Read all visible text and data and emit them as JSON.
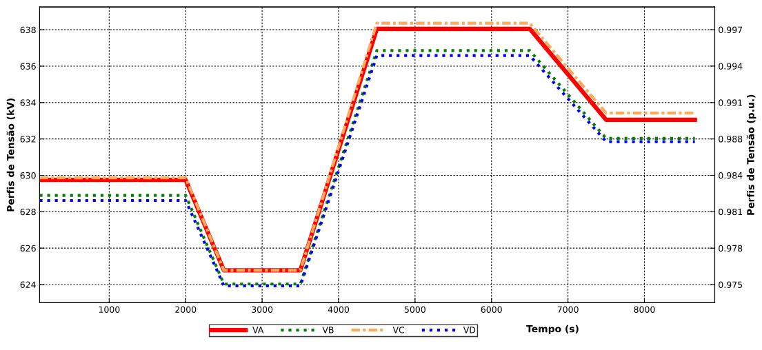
{
  "chart_data": {
    "type": "line",
    "xlabel": "Tempo (s)",
    "ylabel": "Perfis de Tensão (kV)",
    "y2label": "Perfis de Tensão (p.u.)",
    "x": [
      90,
      2000,
      2500,
      3500,
      4500,
      6500,
      7500,
      8660
    ],
    "series": [
      {
        "name": "VA",
        "color": "#ff0000",
        "line_style": "solid",
        "values": [
          629.75,
          629.75,
          624.78,
          624.78,
          638.05,
          638.05,
          633.05,
          633.05
        ]
      },
      {
        "name": "VB",
        "color": "#008000",
        "line_style": "dotted",
        "values": [
          628.9,
          628.9,
          624.03,
          624.03,
          636.86,
          636.86,
          632.03,
          632.03
        ]
      },
      {
        "name": "VC",
        "color": "#ffaa5a",
        "line_style": "dashdot",
        "values": [
          629.86,
          629.86,
          624.78,
          624.78,
          638.36,
          638.36,
          633.42,
          633.42
        ]
      },
      {
        "name": "VD",
        "color": "#0000ff",
        "line_style": "dotted",
        "values": [
          628.62,
          628.62,
          623.93,
          623.93,
          636.58,
          636.58,
          631.85,
          631.85
        ]
      }
    ],
    "xlim": [
      90,
      8920
    ],
    "xticks": [
      1000,
      2000,
      3000,
      4000,
      5000,
      6000,
      7000,
      8000
    ],
    "ylim": [
      623.0,
      639.25
    ],
    "yticks": [
      624,
      626,
      628,
      630,
      632,
      634,
      636,
      638
    ],
    "y2lim": [
      0.97343,
      0.99896
    ],
    "y2ticks": [
      {
        "value": 0.975,
        "label": "0.975"
      },
      {
        "value": 0.97814,
        "label": "0.978"
      },
      {
        "value": 0.98129,
        "label": "0.981"
      },
      {
        "value": 0.98443,
        "label": "0.984"
      },
      {
        "value": 0.98757,
        "label": "0.988"
      },
      {
        "value": 0.99071,
        "label": "0.991"
      },
      {
        "value": 0.99386,
        "label": "0.994"
      },
      {
        "value": 0.997,
        "label": "0.997"
      }
    ],
    "grid": true,
    "legend": "bottom"
  }
}
